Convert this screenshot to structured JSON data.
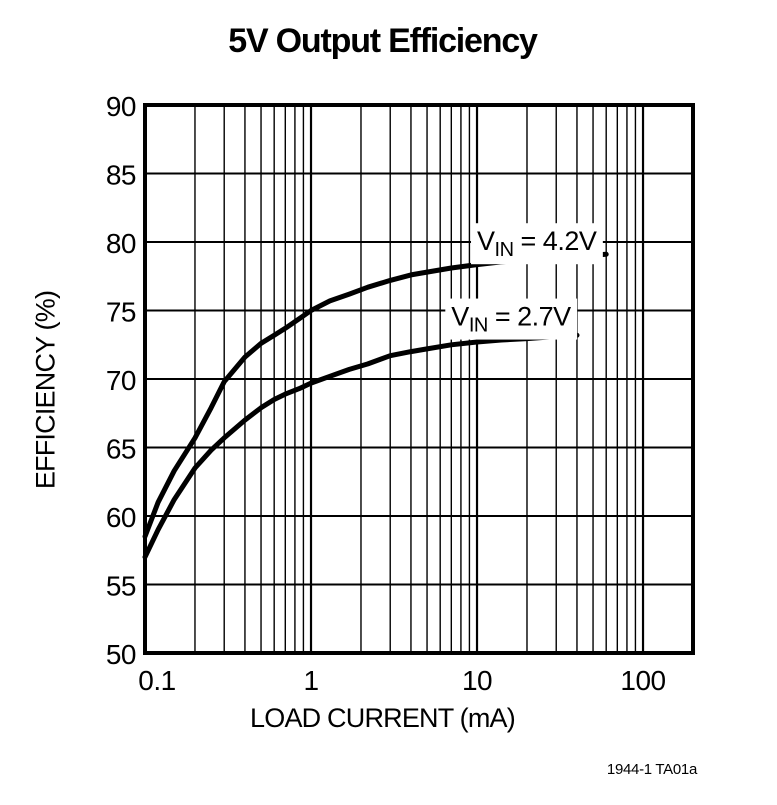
{
  "page": {
    "title": "5V Output Efficiency",
    "footer_note": "1944-1 TA01a"
  },
  "chart_data": {
    "type": "line",
    "title": "5V Output Efficiency",
    "xlabel": "LOAD CURRENT (mA)",
    "ylabel": "EFFICIENCY (%)",
    "x_scale": "log",
    "y_scale": "linear",
    "xlim": [
      0.1,
      200
    ],
    "ylim": [
      50,
      90
    ],
    "grid": {
      "show": true,
      "minor_x_subdivisions": [
        2,
        3,
        4,
        5,
        6,
        7,
        8,
        9
      ]
    },
    "legend_position": "inline-labels",
    "x_ticks": {
      "values": [
        0.1,
        1,
        10,
        100
      ],
      "labels": [
        "0.1",
        "1",
        "10",
        "100"
      ]
    },
    "y_ticks": {
      "values": [
        50,
        55,
        60,
        65,
        70,
        75,
        80,
        85,
        90
      ],
      "labels": [
        "50",
        "55",
        "60",
        "65",
        "70",
        "75",
        "80",
        "85",
        "90"
      ]
    },
    "series": [
      {
        "name": "VIN = 4.2V",
        "x": [
          0.1,
          0.12,
          0.15,
          0.2,
          0.25,
          0.3,
          0.4,
          0.5,
          0.6,
          0.7,
          0.85,
          1.0,
          1.3,
          1.7,
          2.2,
          3,
          4,
          5,
          7,
          10,
          14,
          20,
          30,
          40,
          60
        ],
        "y": [
          58.5,
          61.0,
          63.3,
          65.7,
          67.9,
          69.8,
          71.6,
          72.6,
          73.2,
          73.7,
          74.4,
          75.0,
          75.7,
          76.2,
          76.7,
          77.2,
          77.6,
          77.8,
          78.1,
          78.35,
          78.55,
          78.7,
          78.85,
          78.95,
          79.1
        ]
      },
      {
        "name": "VIN = 2.7V",
        "x": [
          0.1,
          0.12,
          0.15,
          0.2,
          0.25,
          0.3,
          0.4,
          0.5,
          0.6,
          0.7,
          0.85,
          1.0,
          1.3,
          1.7,
          2.2,
          3,
          4,
          5,
          7,
          10,
          14,
          20,
          30,
          40
        ],
        "y": [
          57.0,
          59.0,
          61.2,
          63.5,
          64.8,
          65.7,
          67.0,
          67.9,
          68.5,
          68.9,
          69.3,
          69.7,
          70.2,
          70.7,
          71.1,
          71.7,
          72.0,
          72.2,
          72.5,
          72.7,
          72.85,
          72.95,
          73.1,
          73.2
        ]
      }
    ],
    "annotations": [
      {
        "pre": "V",
        "sub": "IN",
        "post": " = 4.2V",
        "x": 10,
        "y": 79.4
      },
      {
        "pre": "V",
        "sub": "IN",
        "post": " = 2.7V",
        "x": 7,
        "y": 73.9
      }
    ],
    "colors": {
      "foreground": "#000000",
      "background": "#ffffff",
      "curve": "#000000",
      "grid": "#000000"
    }
  }
}
